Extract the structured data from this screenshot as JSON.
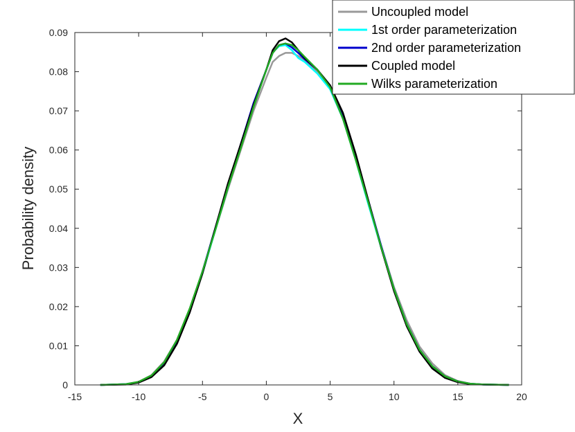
{
  "chart_data": {
    "type": "line",
    "xlabel": "X",
    "ylabel": "Probability density",
    "xlim": [
      -15,
      20
    ],
    "ylim": [
      0,
      0.09
    ],
    "xticks": [
      -15,
      -10,
      -5,
      0,
      5,
      10,
      15,
      20
    ],
    "xtick_labels": [
      "-15",
      "-10",
      "-5",
      "0",
      "5",
      "10",
      "15",
      "20"
    ],
    "yticks": [
      0,
      0.01,
      0.02,
      0.03,
      0.04,
      0.05,
      0.06,
      0.07,
      0.08,
      0.09
    ],
    "ytick_labels": [
      "0",
      "0.01",
      "0.02",
      "0.03",
      "0.04",
      "0.05",
      "0.06",
      "0.07",
      "0.08",
      "0.09"
    ],
    "grid": false,
    "legend_position": "top-right",
    "series": [
      {
        "name": "Uncoupled model",
        "color": "#999999",
        "x": [
          -13,
          -11,
          -10,
          -9,
          -8,
          -7,
          -6,
          -5,
          -4,
          -3,
          -2,
          -1,
          0,
          0.5,
          1,
          1.5,
          2,
          2.5,
          3,
          4,
          5,
          6,
          7,
          8,
          9,
          10,
          11,
          12,
          13,
          14,
          15,
          16,
          17,
          19
        ],
        "y": [
          0,
          0.0002,
          0.0008,
          0.0025,
          0.006,
          0.0115,
          0.0195,
          0.029,
          0.0395,
          0.05,
          0.06,
          0.07,
          0.0785,
          0.0825,
          0.084,
          0.0848,
          0.0848,
          0.084,
          0.083,
          0.08,
          0.0755,
          0.068,
          0.058,
          0.0465,
          0.0355,
          0.025,
          0.0165,
          0.0098,
          0.0055,
          0.0025,
          0.001,
          0.0003,
          0.0001,
          0
        ]
      },
      {
        "name": "1st order parameterization",
        "color": "#00ffff",
        "x": [
          -13,
          -11,
          -10,
          -9,
          -8,
          -7,
          -6,
          -5,
          -4,
          -3,
          -2,
          -1,
          0,
          0.5,
          1,
          1.5,
          2,
          2.5,
          3,
          4,
          5,
          6,
          7,
          8,
          9,
          10,
          11,
          12,
          13,
          14,
          15,
          16,
          17,
          19
        ],
        "y": [
          0,
          0.0002,
          0.0007,
          0.0022,
          0.0055,
          0.011,
          0.019,
          0.0285,
          0.0395,
          0.0505,
          0.061,
          0.0715,
          0.0805,
          0.085,
          0.0865,
          0.0868,
          0.0855,
          0.0835,
          0.0825,
          0.0795,
          0.0755,
          0.068,
          0.0575,
          0.046,
          0.035,
          0.0245,
          0.0155,
          0.009,
          0.0045,
          0.002,
          0.0008,
          0.0002,
          0.0001,
          0
        ]
      },
      {
        "name": "2nd order parameterization",
        "color": "#0000cc",
        "x": [
          -13,
          -11,
          -10,
          -9,
          -8,
          -7,
          -6,
          -5,
          -4,
          -3,
          -2,
          -1,
          0,
          0.5,
          1,
          1.5,
          2,
          2.5,
          3,
          4,
          5,
          6,
          7,
          8,
          9,
          10,
          11,
          12,
          13,
          14,
          15,
          16,
          17,
          19
        ],
        "y": [
          0,
          0.0002,
          0.0007,
          0.0022,
          0.0055,
          0.011,
          0.019,
          0.029,
          0.04,
          0.051,
          0.0615,
          0.072,
          0.0805,
          0.0848,
          0.0868,
          0.0872,
          0.0862,
          0.0848,
          0.0832,
          0.0805,
          0.0762,
          0.0685,
          0.058,
          0.047,
          0.0355,
          0.0245,
          0.0155,
          0.009,
          0.0048,
          0.0022,
          0.0009,
          0.0003,
          0.0001,
          0
        ]
      },
      {
        "name": "Coupled model",
        "color": "#000000",
        "x": [
          -13,
          -11,
          -10,
          -9,
          -8,
          -7,
          -6,
          -5,
          -4,
          -3,
          -2,
          -1,
          0,
          0.5,
          1,
          1.5,
          2,
          2.5,
          3,
          4,
          5,
          6,
          7,
          8,
          9,
          10,
          11,
          12,
          13,
          14,
          15,
          16,
          17,
          19
        ],
        "y": [
          0,
          0.0001,
          0.0006,
          0.002,
          0.005,
          0.0105,
          0.0185,
          0.0285,
          0.04,
          0.0515,
          0.0615,
          0.0715,
          0.0805,
          0.0855,
          0.0878,
          0.0885,
          0.0875,
          0.0855,
          0.0835,
          0.0805,
          0.0765,
          0.0695,
          0.059,
          0.047,
          0.035,
          0.024,
          0.015,
          0.0085,
          0.0042,
          0.0018,
          0.0007,
          0.0002,
          0.0001,
          0
        ]
      },
      {
        "name": "Wilks parameterization",
        "color": "#22aa22",
        "x": [
          -13,
          -11,
          -10,
          -9,
          -8,
          -7,
          -6,
          -5,
          -4,
          -3,
          -2,
          -1,
          0,
          0.5,
          1,
          1.5,
          2,
          2.5,
          3,
          4,
          5,
          6,
          7,
          8,
          9,
          10,
          11,
          12,
          13,
          14,
          15,
          16,
          17,
          19
        ],
        "y": [
          0,
          0.0002,
          0.0008,
          0.0024,
          0.0058,
          0.0115,
          0.0195,
          0.029,
          0.0395,
          0.0505,
          0.0605,
          0.071,
          0.0805,
          0.0848,
          0.0868,
          0.0872,
          0.0868,
          0.0855,
          0.0838,
          0.0805,
          0.076,
          0.068,
          0.0575,
          0.0465,
          0.0352,
          0.0245,
          0.0155,
          0.009,
          0.0048,
          0.0022,
          0.0009,
          0.0003,
          0.0001,
          0
        ]
      }
    ]
  }
}
